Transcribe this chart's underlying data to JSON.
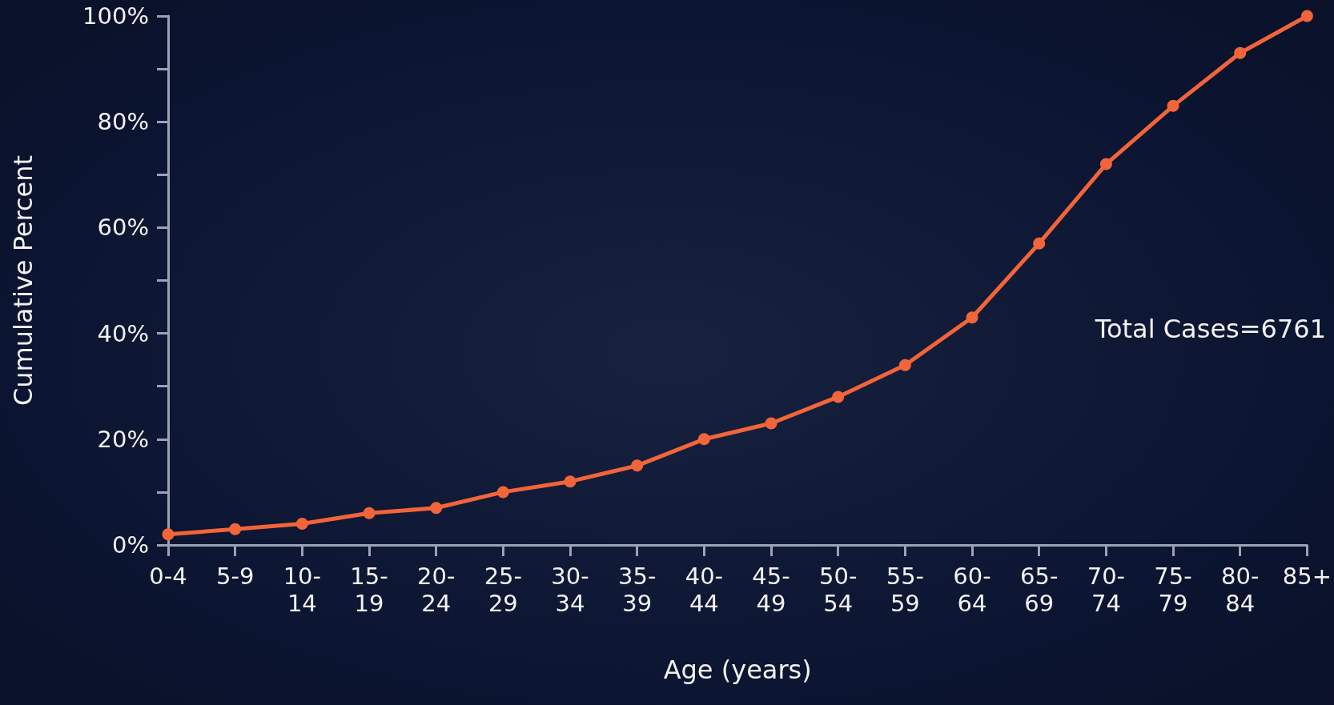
{
  "chart_data": {
    "type": "line",
    "xlabel": "Age (years)",
    "ylabel": "Cumulative Percent",
    "categories": [
      "0-4",
      "5-9",
      "10-14",
      "15-19",
      "20-24",
      "25-29",
      "30-34",
      "35-39",
      "40-44",
      "45-49",
      "50-54",
      "55-59",
      "60-64",
      "65-69",
      "70-74",
      "75-79",
      "80-84",
      "85+"
    ],
    "series": [
      {
        "color": "#f2643a",
        "values": [
          2,
          3,
          4,
          6,
          7,
          10,
          12,
          15,
          20,
          23,
          28,
          34,
          43,
          57,
          72,
          83,
          93,
          100
        ]
      }
    ],
    "ylim": [
      0,
      100
    ],
    "yticks": [
      {
        "value": 0,
        "label": "0%"
      },
      {
        "value": 10,
        "label": null
      },
      {
        "value": 20,
        "label": "20%"
      },
      {
        "value": 30,
        "label": null
      },
      {
        "value": 40,
        "label": "40%"
      },
      {
        "value": 50,
        "label": null
      },
      {
        "value": 60,
        "label": "60%"
      },
      {
        "value": 70,
        "label": null
      },
      {
        "value": 80,
        "label": "80%"
      },
      {
        "value": 90,
        "label": null
      },
      {
        "value": 100,
        "label": "100%"
      }
    ],
    "annotations": [
      "Total Cases=6761"
    ],
    "marker": "circle",
    "line_style": "solid"
  }
}
